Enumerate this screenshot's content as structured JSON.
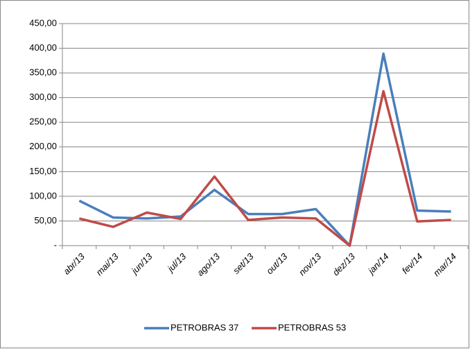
{
  "chart_data": {
    "type": "line",
    "categories": [
      "abr/13",
      "mai/13",
      "jun/13",
      "jul/13",
      "ago/13",
      "set/13",
      "out/13",
      "nov/13",
      "dez/13",
      "jan/14",
      "fev/14",
      "mar/14"
    ],
    "series": [
      {
        "name": "PETROBRAS 37",
        "color": "#4a7ebb",
        "values": [
          91,
          57,
          55,
          59,
          113,
          64,
          64,
          74,
          0,
          389,
          71,
          69
        ]
      },
      {
        "name": "PETROBRAS 53",
        "color": "#be4b48",
        "values": [
          55,
          38,
          67,
          54,
          140,
          52,
          57,
          55,
          0,
          313,
          49,
          52
        ]
      }
    ],
    "ylim": [
      0,
      450
    ],
    "yticks": [
      {
        "value": 0,
        "label": "-"
      },
      {
        "value": 50,
        "label": "50,00"
      },
      {
        "value": 100,
        "label": "100,00"
      },
      {
        "value": 150,
        "label": "150,00"
      },
      {
        "value": 200,
        "label": "200,00"
      },
      {
        "value": 250,
        "label": "250,00"
      },
      {
        "value": 300,
        "label": "300,00"
      },
      {
        "value": 350,
        "label": "350,00"
      },
      {
        "value": 400,
        "label": "400,00"
      },
      {
        "value": 450,
        "label": "450,00"
      }
    ],
    "grid": true,
    "legend": "bottom"
  }
}
